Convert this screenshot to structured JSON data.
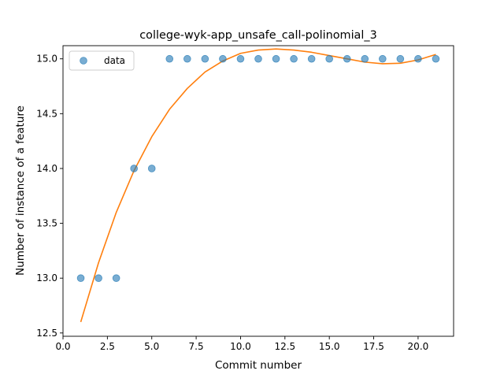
{
  "chart_data": {
    "type": "scatter",
    "title": "college-wyk-app_unsafe_call-polinomial_3",
    "xlabel": "Commit number",
    "ylabel": "Number of instance of a feature",
    "xlim": [
      0.0,
      22.0
    ],
    "ylim": [
      12.47,
      15.12
    ],
    "x_ticks": [
      0.0,
      2.5,
      5.0,
      7.5,
      10.0,
      12.5,
      15.0,
      17.5,
      20.0
    ],
    "x_tick_labels": [
      "0.0",
      "2.5",
      "5.0",
      "7.5",
      "10.0",
      "12.5",
      "15.0",
      "17.5",
      "20.0"
    ],
    "y_ticks": [
      12.5,
      13.0,
      13.5,
      14.0,
      14.5,
      15.0
    ],
    "y_tick_labels": [
      "12.5",
      "13.0",
      "13.5",
      "14.0",
      "14.5",
      "15.0"
    ],
    "grid": false,
    "legend": {
      "position": "upper-left",
      "entries": [
        "data"
      ]
    },
    "series": [
      {
        "name": "data",
        "kind": "scatter",
        "color": "#1f77b4",
        "x": [
          1,
          2,
          3,
          4,
          5,
          6,
          7,
          8,
          9,
          10,
          11,
          12,
          13,
          14,
          15,
          16,
          17,
          18,
          19,
          20,
          21
        ],
        "y": [
          13,
          13,
          13,
          14,
          14,
          15,
          15,
          15,
          15,
          15,
          15,
          15,
          15,
          15,
          15,
          15,
          15,
          15,
          15,
          15,
          15
        ]
      },
      {
        "kind": "line",
        "color": "#ff7f0e",
        "x": [
          1,
          2,
          3,
          4,
          5,
          6,
          7,
          8,
          9,
          10,
          11,
          12,
          13,
          14,
          15,
          16,
          17,
          18,
          19,
          20,
          21
        ],
        "y": [
          12.6,
          13.14,
          13.6,
          13.98,
          14.29,
          14.54,
          14.73,
          14.88,
          14.98,
          15.05,
          15.08,
          15.09,
          15.08,
          15.06,
          15.03,
          15.0,
          14.97,
          14.955,
          14.96,
          14.99,
          15.04
        ]
      }
    ]
  }
}
